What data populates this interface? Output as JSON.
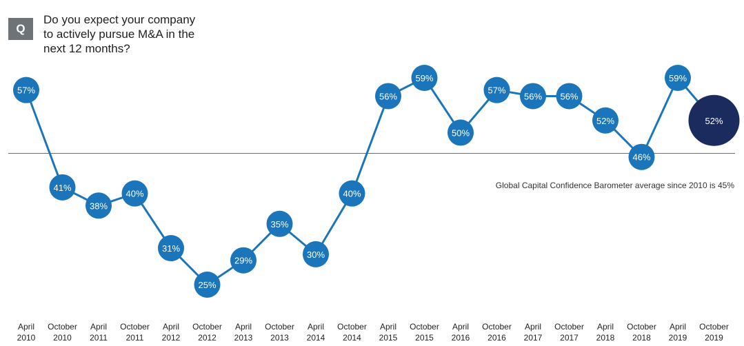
{
  "badge": "Q",
  "question": {
    "line1": "Do you expect your company",
    "line2": "to actively pursue M&A in the",
    "line3": "next 12 months?"
  },
  "average_note": "Global Capital Confidence Barometer average since 2010 is 45%",
  "colors": {
    "series": "#1a75bb",
    "latest": "#1c2b5e",
    "line": "#1a75bb",
    "reference": "#6b6b6b"
  },
  "chart_data": {
    "type": "line",
    "categories": [
      [
        "April",
        "2010"
      ],
      [
        "October",
        "2010"
      ],
      [
        "April",
        "2011"
      ],
      [
        "October",
        "2011"
      ],
      [
        "April",
        "2012"
      ],
      [
        "October",
        "2012"
      ],
      [
        "April",
        "2013"
      ],
      [
        "October",
        "2013"
      ],
      [
        "April",
        "2014"
      ],
      [
        "October",
        "2014"
      ],
      [
        "April",
        "2015"
      ],
      [
        "October",
        "2015"
      ],
      [
        "April",
        "2016"
      ],
      [
        "October",
        "2016"
      ],
      [
        "April",
        "2017"
      ],
      [
        "October",
        "2017"
      ],
      [
        "April",
        "2018"
      ],
      [
        "October",
        "2018"
      ],
      [
        "April",
        "2019"
      ],
      [
        "October",
        "2019"
      ]
    ],
    "values": [
      57,
      41,
      38,
      40,
      31,
      25,
      29,
      35,
      30,
      40,
      56,
      59,
      50,
      57,
      56,
      56,
      52,
      46,
      59,
      52
    ],
    "labels": [
      "57%",
      "41%",
      "38%",
      "40%",
      "31%",
      "25%",
      "29%",
      "35%",
      "30%",
      "40%",
      "56%",
      "59%",
      "50%",
      "57%",
      "56%",
      "56%",
      "52%",
      "46%",
      "59%",
      "52%"
    ],
    "reference_line": 45
  }
}
